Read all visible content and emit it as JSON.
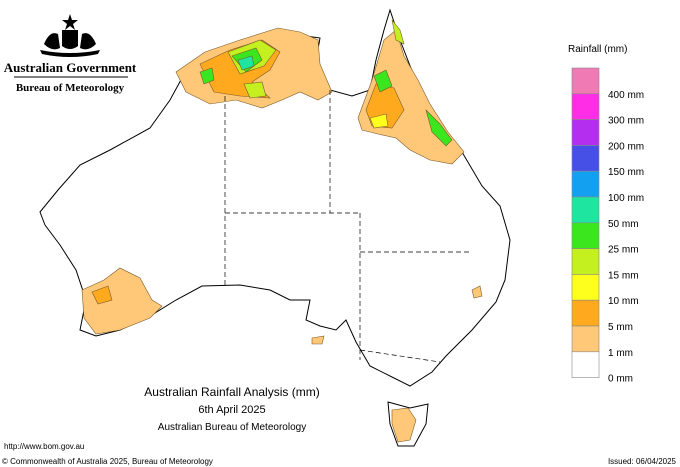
{
  "header": {
    "title": "Australian Government",
    "subtitle": "Bureau of Meteorology"
  },
  "legend": {
    "title": "Rainfall (mm)",
    "items": [
      {
        "color": "#f07ab4",
        "label": "400 mm"
      },
      {
        "color": "#ff2ee6",
        "label": "300 mm"
      },
      {
        "color": "#b42ef0",
        "label": "200 mm"
      },
      {
        "color": "#4650e6",
        "label": "150 mm"
      },
      {
        "color": "#14a0f0",
        "label": "100 mm"
      },
      {
        "color": "#1ee6a0",
        "label": "50 mm"
      },
      {
        "color": "#3ce61e",
        "label": "25 mm"
      },
      {
        "color": "#c3f01e",
        "label": "15 mm"
      },
      {
        "color": "#ffff1e",
        "label": "10 mm"
      },
      {
        "color": "#ffaa1e",
        "label": "5 mm"
      },
      {
        "color": "#ffc878",
        "label": "1 mm"
      },
      {
        "color": "#ffffff",
        "label": "0 mm"
      }
    ]
  },
  "map": {
    "title": "Australian Rainfall Analysis (mm)",
    "date": "6th April 2025",
    "source": "Australian Bureau of Meteorology"
  },
  "footer": {
    "url": "http://www.bom.gov.au",
    "copyright": "© Commonwealth of Australia 2025, Bureau of Meteorology",
    "issued": "Issued: 06/04/2025"
  }
}
